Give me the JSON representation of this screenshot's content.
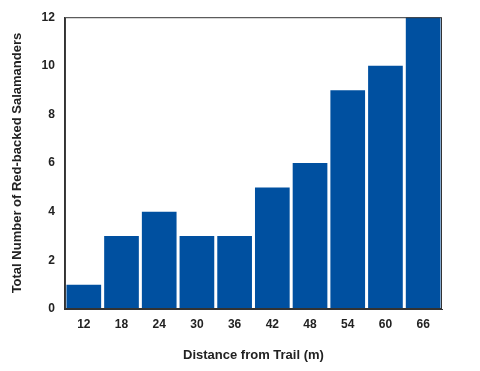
{
  "chart_data": {
    "type": "bar",
    "xlabel": "Distance from Trail (m)",
    "ylabel": "Total Number of Red-backed Salamanders",
    "categories": [
      "12",
      "18",
      "24",
      "30",
      "36",
      "42",
      "48",
      "54",
      "60",
      "66"
    ],
    "values": [
      1,
      3,
      4,
      3,
      3,
      5,
      6,
      9,
      10,
      12
    ],
    "color": "#0050a0",
    "ylim": [
      0,
      12
    ],
    "yticks": [
      0,
      2,
      4,
      6,
      8,
      10,
      12
    ],
    "grid": false
  }
}
